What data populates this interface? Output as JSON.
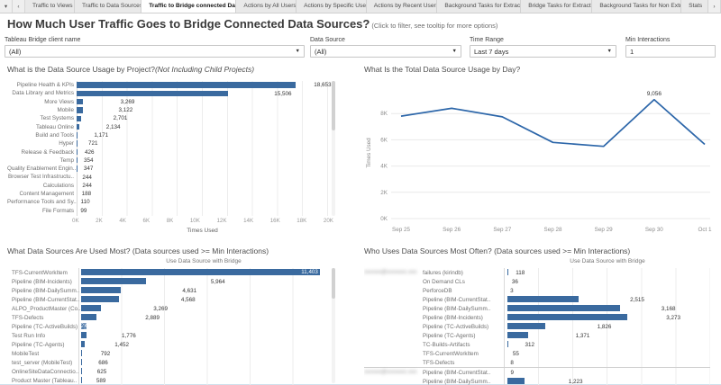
{
  "colors": {
    "bar": "#3a6a9f",
    "line": "#2c66a9",
    "active_tab_bg": "#ffffff"
  },
  "tabbar": {
    "caret_icon": "▾",
    "back_icon": "‹",
    "forward_icon": "›",
    "tabs": [
      {
        "label": "Traffic to Views",
        "active": false
      },
      {
        "label": "Traffic to Data Sources",
        "active": false
      },
      {
        "label": "Traffic to Bridge connected Dat...",
        "active": true
      },
      {
        "label": "Actions by All Users",
        "active": false
      },
      {
        "label": "Actions by Specific User",
        "active": false
      },
      {
        "label": "Actions by Recent Users",
        "active": false
      },
      {
        "label": "Background Tasks for Extracts",
        "active": false
      },
      {
        "label": "Bridge Tasks for Extracts",
        "active": false
      },
      {
        "label": "Background Tasks for Non Extr...",
        "active": false
      },
      {
        "label": "Stats",
        "active": false
      }
    ]
  },
  "header": {
    "title": "How Much User Traffic Goes to Bridge Connected Data Sources?",
    "subtitle": "(Click to filter, see tooltip for more options)"
  },
  "filters": [
    {
      "label": "Tableau Bridge client name",
      "value": "(All)",
      "type": "dropdown"
    },
    {
      "label": "Data Source",
      "value": "(All)",
      "type": "dropdown"
    },
    {
      "label": "Time Range",
      "value": "Last 7 days",
      "type": "dropdown"
    },
    {
      "label": "Min Interactions",
      "value": "1",
      "type": "input"
    }
  ],
  "chart_data": [
    {
      "type": "bar",
      "title": "What is the Data Source Usage by Project?",
      "title_note": "(Not Including Child Projects)",
      "xlabel": "Times Used",
      "xlim": [
        0,
        20000
      ],
      "xticks": [
        "0K",
        "2K",
        "4K",
        "6K",
        "8K",
        "10K",
        "12K",
        "14K",
        "16K",
        "18K",
        "20K"
      ],
      "categories": [
        "Pipeline Health & KPIs",
        "Data Library and Metrics",
        "More Views",
        "Mobile",
        "Test Systems",
        "Tableau Online",
        "Build and Tools",
        "Hyper",
        "Release & Feedback",
        "Temp",
        "Quality Enablement Engin..",
        "Browser Test Infrastructu..",
        "Calculations",
        "Content Management",
        "Performance Tools and Sy..",
        "File Formats"
      ],
      "values": [
        18653,
        15506,
        3269,
        3122,
        2701,
        2134,
        1171,
        721,
        426,
        354,
        347,
        244,
        244,
        188,
        110,
        99
      ],
      "value_labels": [
        "18,653",
        "15,506",
        "3,269",
        "3,122",
        "2,701",
        "2,134",
        "1,171",
        "721",
        "426",
        "354",
        "347",
        "244",
        "244",
        "188",
        "110",
        "99"
      ]
    },
    {
      "type": "line",
      "title": "What Is the Total Data Source Usage by Day?",
      "ylabel": "Times Used",
      "ylim": [
        0,
        10000
      ],
      "yticks": [
        {
          "label": "8K",
          "value": 8000
        },
        {
          "label": "6K",
          "value": 6000
        },
        {
          "label": "4K",
          "value": 4000
        },
        {
          "label": "2K",
          "value": 2000
        },
        {
          "label": "0K",
          "value": 0
        }
      ],
      "x": [
        "Sep 25",
        "Sep 26",
        "Sep 27",
        "Sep 28",
        "Sep 29",
        "Sep 30",
        "Oct 1"
      ],
      "values": [
        7800,
        8400,
        7750,
        5800,
        5500,
        9056,
        5650
      ],
      "annotation": {
        "index": 5,
        "text": "9,056"
      }
    },
    {
      "type": "bar",
      "title": "What Data Sources Are Used Most? (Data sources used >= Min Interactions)",
      "column_header": "Use Data Source with Bridge",
      "xlim": [
        0,
        11600
      ],
      "rows": [
        {
          "label": "TFS-CurrentWorkItem",
          "segments": [
            {
              "value": 11403,
              "display": "11,403",
              "inside": true
            }
          ]
        },
        {
          "label": "Pipeline (BIM-Incidents)",
          "segments": [
            {
              "value": 5964,
              "display": "5,964"
            }
          ]
        },
        {
          "label": "Pipeline (BIM-DailySumm..",
          "segments": [
            {
              "value": 4631,
              "display": "4,631"
            }
          ]
        },
        {
          "label": "Pipeline (BIM-CurrentStat..",
          "segments": [
            {
              "value": 4568,
              "display": "4,568"
            }
          ]
        },
        {
          "label": "ALPO_ProductMaster (Co..",
          "segments": [
            {
              "value": 3269,
              "display": "3,269"
            }
          ]
        },
        {
          "label": "TFS-Defects",
          "segments": [
            {
              "value": 2889,
              "display": "2,889"
            }
          ]
        },
        {
          "label": "Pipeline (TC-ActiveBuilds)",
          "segments": [
            {
              "value": 1214,
              "display": "1,214",
              "inside": true
            },
            {
              "value": 544,
              "display": "544",
              "inside": true
            }
          ]
        },
        {
          "label": "Test Run Info",
          "segments": [
            {
              "value": 1776,
              "display": "1,776"
            }
          ]
        },
        {
          "label": "Pipeline (TC-Agents)",
          "segments": [
            {
              "value": 1452,
              "display": "1,452"
            }
          ]
        },
        {
          "label": "MobileTest",
          "segments": [
            {
              "value": 792,
              "display": "792"
            }
          ]
        },
        {
          "label": "test_server (MobileTest)",
          "segments": [
            {
              "value": 686,
              "display": "686"
            }
          ]
        },
        {
          "label": "OnlineSiteDataConnectio..",
          "segments": [
            {
              "value": 625,
              "display": "625"
            }
          ]
        },
        {
          "label": "Product Master (Tableau..",
          "segments": [
            {
              "value": 589,
              "display": "589"
            }
          ]
        }
      ]
    },
    {
      "type": "bar",
      "title": "Who Uses Data Sources Most Often? (Data sources used >= Min Interactions)",
      "column_header": "Use Data Source with Bridge",
      "xlim": [
        0,
        4250
      ],
      "groups": [
        {
          "user": "xxxxxx@xxxxxxx.xxx",
          "user_blurred": true,
          "rows": [
            {
              "label": "failures (kirindb)",
              "value": 118,
              "display": "118"
            },
            {
              "label": "On Demand CLs",
              "value": 36,
              "display": "36"
            },
            {
              "label": "PerforceDB",
              "value": 3,
              "display": "3"
            },
            {
              "label": "Pipeline (BIM-CurrentStat..",
              "value": 2515,
              "display": "2,515"
            },
            {
              "label": "Pipeline (BIM-DailySumm..",
              "value": 3168,
              "display": "3,168"
            },
            {
              "label": "Pipeline (BIM-Incidents)",
              "value": 3273,
              "display": "3,273"
            },
            {
              "label": "Pipeline (TC-ActiveBuilds)",
              "value": 1826,
              "display": "1,826"
            },
            {
              "label": "Pipeline (TC-Agents)",
              "value": 1371,
              "display": "1,371"
            },
            {
              "label": "TC-Builds-Artifacts",
              "value": 312,
              "display": "312"
            },
            {
              "label": "TFS-CurrentWorkItem",
              "value": 55,
              "display": "55"
            },
            {
              "label": "TFS-Defects",
              "value": 8,
              "display": "8"
            }
          ]
        },
        {
          "user": "xxxxxx@xxxxxxx.xxx",
          "user_blurred": true,
          "rows": [
            {
              "label": "Pipeline (BIM-CurrentStat..",
              "value": 9,
              "display": "9"
            },
            {
              "label": "Pipeline (BIM-DailySumm..",
              "value": 1223,
              "display": "1,223"
            }
          ]
        }
      ]
    }
  ]
}
